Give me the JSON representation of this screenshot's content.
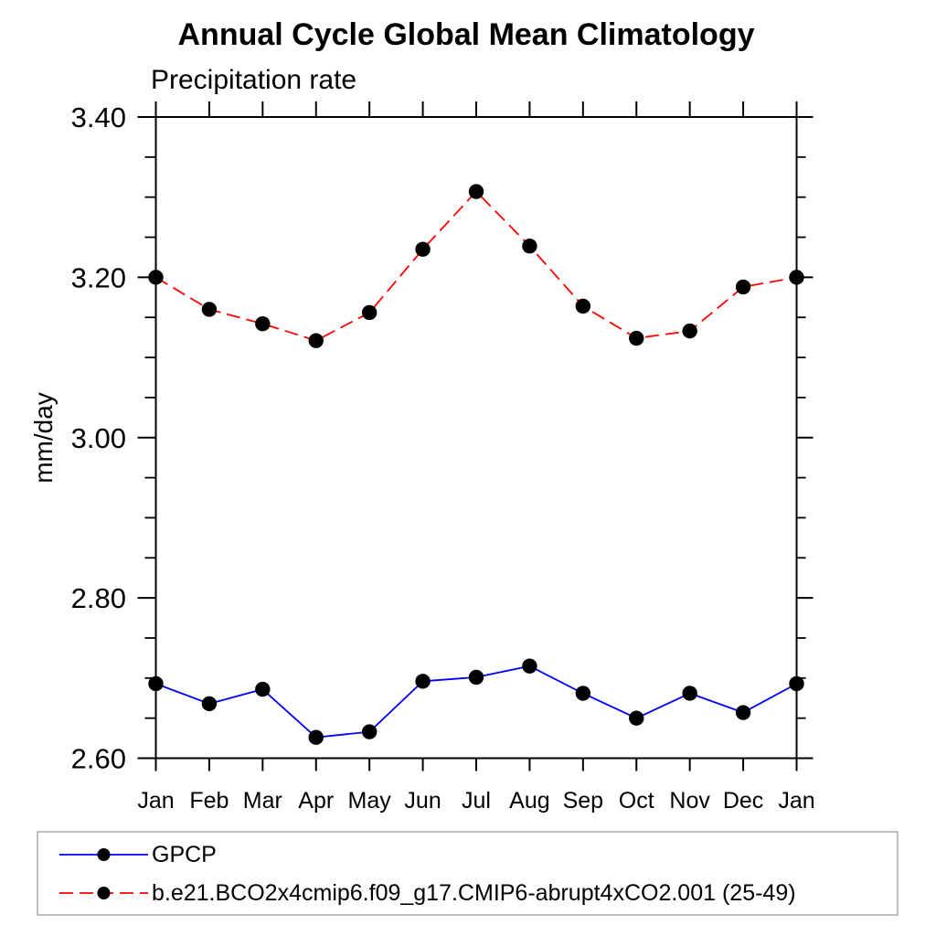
{
  "page": {
    "background_color": "#ffffff",
    "text_color": "#000000"
  },
  "chart_data": {
    "type": "line",
    "title": "Annual Cycle Global Mean Climatology",
    "left_axis_title": "Precipitation rate",
    "ylabel": "mm/day",
    "xlabel": "",
    "categories": [
      "Jan",
      "Feb",
      "Mar",
      "Apr",
      "May",
      "Jun",
      "Jul",
      "Aug",
      "Sep",
      "Oct",
      "Nov",
      "Dec",
      "Jan"
    ],
    "ylim": [
      2.6,
      3.4
    ],
    "ytick_labels": [
      "2.60",
      "2.80",
      "3.00",
      "3.20",
      "3.40"
    ],
    "yticks_major": [
      2.6,
      2.8,
      3.0,
      3.2,
      3.4
    ],
    "ytick_minor_step": 0.05,
    "grid": false,
    "frame": "box",
    "legend_position": "bottom-left-box",
    "legend_border_color": "#aaaaaa",
    "marker_color": "#000000",
    "series": [
      {
        "name": "GPCP",
        "color": "#0000ff",
        "style": "solid",
        "marker": "filled-circle",
        "values": [
          2.693,
          2.668,
          2.686,
          2.626,
          2.633,
          2.696,
          2.701,
          2.715,
          2.681,
          2.65,
          2.681,
          2.657,
          2.693
        ]
      },
      {
        "name": "b.e21.BCO2x4cmip6.f09_g17.CMIP6-abrupt4xCO2.001 (25-49)",
        "color": "#ff0000",
        "style": "dashed",
        "marker": "filled-circle",
        "values": [
          3.2,
          3.16,
          3.142,
          3.121,
          3.156,
          3.235,
          3.307,
          3.239,
          3.164,
          3.124,
          3.133,
          3.188,
          3.2
        ]
      }
    ]
  }
}
